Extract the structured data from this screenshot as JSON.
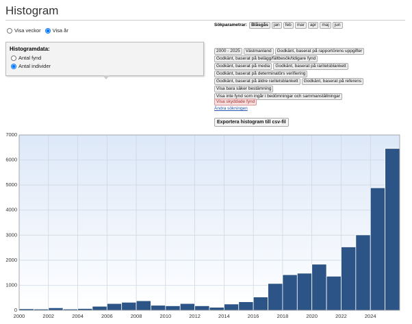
{
  "header": {
    "title": "Histogram"
  },
  "view": {
    "options": [
      "Visa veckor",
      "Visa år"
    ],
    "selected": 1
  },
  "histogram_data": {
    "label": "Histogramdata:",
    "options": [
      "Antal fynd",
      "Antal individer"
    ],
    "selected": 1
  },
  "search": {
    "label": "Sökparametrar:",
    "species": "Blåsgås",
    "months": [
      "jan",
      "feb",
      "mar",
      "apr",
      "maj",
      "jun"
    ],
    "rows": [
      [
        "2000 - 2025",
        "Västmanland",
        "Godkänt, baserat på rapportörens uppgifter"
      ],
      [
        "Godkänt, baserat på belägg/fältbesök/tidigare fynd"
      ],
      [
        "Godkänt, baserat på media",
        "Godkänt, baserat på raritetsblankett"
      ],
      [
        "Godkänt, baserat på determinatörs verifiering"
      ],
      [
        "Godkänt, baserat på äldre raritetsblankett",
        "Godkänt, baserat på referens"
      ],
      [
        "Visa bara säker bestämning"
      ],
      [
        "Visa inte fynd som ingår i bedömningar och sammanställningar"
      ]
    ],
    "protected": "Visa skyddade fynd",
    "edit_link": "Ändra sökningen",
    "export": "Exportera histogram till csv-fil"
  },
  "chart_data": {
    "type": "histogram",
    "color": "#2d5486",
    "bins": [
      2000,
      2001,
      2002,
      2003,
      2004,
      2005,
      2006,
      2007,
      2008,
      2009,
      2010,
      2011,
      2012,
      2013,
      2014,
      2015,
      2016,
      2017,
      2018,
      2019,
      2020,
      2021,
      2022,
      2023,
      2024,
      2025,
      2026
    ],
    "values": [
      60,
      50,
      100,
      50,
      70,
      160,
      270,
      320,
      380,
      200,
      180,
      270,
      180,
      120,
      250,
      340,
      530,
      1070,
      1420,
      1480,
      1840,
      1360,
      2530,
      3010,
      4890,
      6460
    ],
    "xlim": [
      2000,
      2026
    ],
    "xticks": [
      2000,
      2002,
      2004,
      2006,
      2008,
      2010,
      2012,
      2014,
      2016,
      2018,
      2020,
      2022,
      2024
    ],
    "ylim": [
      0,
      7000
    ],
    "yticks": [
      0,
      1000,
      2000,
      3000,
      4000,
      5000,
      6000,
      7000
    ],
    "grid": true
  }
}
